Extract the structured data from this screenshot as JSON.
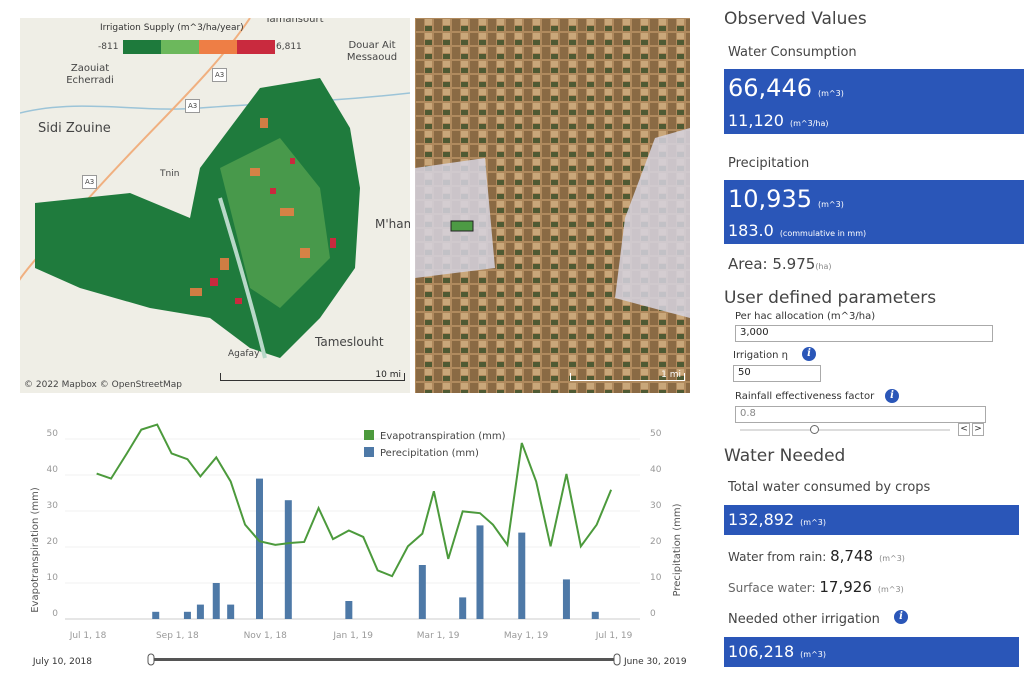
{
  "map": {
    "legend_title": "Irrigation Supply (m^3/ha/year)",
    "legend_min": "-811",
    "legend_max": "6,811",
    "legend_colors": [
      "#1e7a3c",
      "#6cb85c",
      "#ee7e45",
      "#c92a3e"
    ],
    "places": [
      "Tamansourt",
      "Douar Ait Messaoud",
      "Zaouiat Echerradi",
      "Sidi Zouine",
      "Tnin",
      "M'hamid",
      "Tameslouht",
      "Agafay",
      "A3",
      "A3",
      "A3"
    ],
    "attribution": "© 2022 Mapbox  © OpenStreetMap",
    "scale": "10 mi"
  },
  "satellite": {
    "scale": "1 mi"
  },
  "observed": {
    "title": "Observed Values",
    "water_consumption_label": "Water Consumption",
    "water_consumption_value": "66,446",
    "water_consumption_unit": "(m^3)",
    "water_per_ha_value": "11,120",
    "water_per_ha_unit": "(m^3/ha)",
    "precipitation_label": "Precipitation",
    "precipitation_value": "10,935",
    "precipitation_unit": "(m^3)",
    "precipitation_mm_value": "183.0",
    "precipitation_mm_unit": "(commulative in mm)",
    "area_label": "Area:",
    "area_value": "5.975",
    "area_unit": "(ha)"
  },
  "params": {
    "title": "User defined parameters",
    "allocation_label": "Per hac allocation (m^3/ha)",
    "allocation_value": "3,000",
    "irrigation_label": "Irrigation η",
    "irrigation_value": "50",
    "rainfall_label": "Rainfall effectiveness factor",
    "rainfall_value": "0.8",
    "rainfall_slider_fraction": 0.35,
    "prev": "<",
    "next": ">"
  },
  "needed": {
    "title": "Water Needed",
    "total_label": "Total water consumed by crops",
    "total_value": "132,892",
    "total_unit": "(m^3)",
    "rain_label": "Water from rain:",
    "rain_value": "8,748",
    "rain_unit": "(m^3)",
    "surface_label": "Surface water:",
    "surface_value": "17,926",
    "surface_unit": "(m^3)",
    "other_label": "Needed other irrigation",
    "other_value": "106,218",
    "other_unit": "(m^3)"
  },
  "date_range": {
    "start": "July 10, 2018",
    "end": "June 30, 2019"
  },
  "chart_data": {
    "type": "line+bar",
    "ylabel_left": "Evapotranspiration (mm)",
    "ylabel_right": "Precipitation (mm)",
    "ylim": [
      0,
      55
    ],
    "y_ticks": [
      "0",
      "10",
      "20",
      "30",
      "40",
      "50"
    ],
    "x_ticks": [
      {
        "label": "Jul 1, 18",
        "date": "2018-07-01"
      },
      {
        "label": "Sep 1, 18",
        "date": "2018-09-01"
      },
      {
        "label": "Nov 1, 18",
        "date": "2018-11-01"
      },
      {
        "label": "Jan 1, 19",
        "date": "2019-01-01"
      },
      {
        "label": "Mar 1, 19",
        "date": "2019-03-01"
      },
      {
        "label": "May 1, 19",
        "date": "2019-05-01"
      },
      {
        "label": "Jul 1, 19",
        "date": "2019-07-01"
      }
    ],
    "grid": true,
    "legend_position": "top-center",
    "series": [
      {
        "name": "Evapotranspiration (mm)",
        "type": "line",
        "color": "#4c9a3c",
        "x": [
          "2018-07-07",
          "2018-07-17",
          "2018-07-28",
          "2018-08-07",
          "2018-08-18",
          "2018-08-28",
          "2018-09-08",
          "2018-09-17",
          "2018-09-28",
          "2018-10-08",
          "2018-10-18",
          "2018-10-28",
          "2018-11-08",
          "2018-11-18",
          "2018-11-28",
          "2018-12-08",
          "2018-12-18",
          "2018-12-29",
          "2019-01-08",
          "2019-01-18",
          "2019-01-28",
          "2019-02-08",
          "2019-02-18",
          "2019-02-26",
          "2019-03-08",
          "2019-03-18",
          "2019-03-30",
          "2019-04-08",
          "2019-04-18",
          "2019-04-28",
          "2019-05-08",
          "2019-05-18",
          "2019-05-29",
          "2019-06-08",
          "2019-06-19",
          "2019-06-29"
        ],
        "values": [
          40.4,
          39,
          46,
          52.6,
          54,
          46,
          44.4,
          39.6,
          44.9,
          38.2,
          26.2,
          21.6,
          20.6,
          21.1,
          21.4,
          30.8,
          22.2,
          24.6,
          22.8,
          13.5,
          11.9,
          20.2,
          23.7,
          35.5,
          16.7,
          29.9,
          29.4,
          26.2,
          20.6,
          48.9,
          38.2,
          20.2,
          40.3,
          20.2,
          26.2,
          35.9
        ]
      },
      {
        "name": "Perecipitation (mm)",
        "type": "bar",
        "color": "#4e79a7",
        "x": [
          "2018-08-17",
          "2018-09-08",
          "2018-09-17",
          "2018-09-28",
          "2018-10-08",
          "2018-10-28",
          "2018-11-17",
          "2018-12-29",
          "2019-02-18",
          "2019-03-18",
          "2019-03-30",
          "2019-04-28",
          "2019-05-29",
          "2019-06-18"
        ],
        "values": [
          2,
          2,
          4,
          10,
          4,
          39,
          33,
          5,
          15,
          6,
          26,
          24,
          11,
          2
        ]
      }
    ]
  }
}
